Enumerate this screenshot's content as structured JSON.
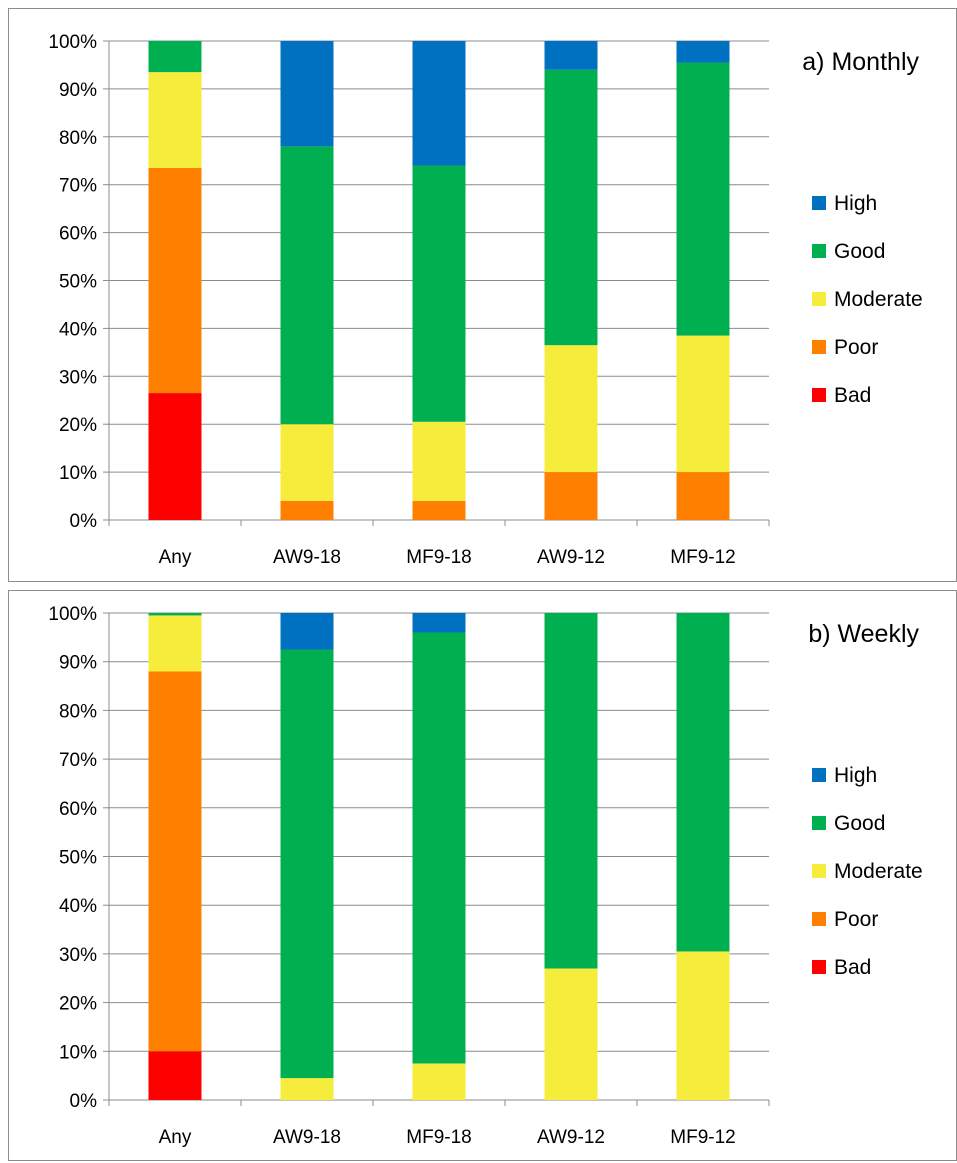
{
  "colors": {
    "High": "#0070c0",
    "Good": "#00b050",
    "Moderate": "#f5ec3c",
    "Poor": "#ff8000",
    "Bad": "#ff0000",
    "grid": "#8c8c8c"
  },
  "chart_data": [
    {
      "type": "bar",
      "stacked": true,
      "title": "a) Monthly",
      "categories": [
        "Any",
        "AW9-18",
        "MF9-18",
        "AW9-12",
        "MF9-12"
      ],
      "ylim": [
        0,
        100
      ],
      "yticks": [
        "0%",
        "10%",
        "20%",
        "30%",
        "40%",
        "50%",
        "60%",
        "70%",
        "80%",
        "90%",
        "100%"
      ],
      "grid": true,
      "legend_position": "right",
      "series": [
        {
          "name": "Bad",
          "values": [
            26.5,
            0,
            0,
            0,
            0
          ]
        },
        {
          "name": "Poor",
          "values": [
            47,
            4,
            4,
            10,
            10
          ]
        },
        {
          "name": "Moderate",
          "values": [
            20,
            16,
            16.5,
            26.5,
            28.5
          ]
        },
        {
          "name": "Good",
          "values": [
            6.5,
            58,
            53.5,
            57.5,
            57
          ]
        },
        {
          "name": "High",
          "values": [
            0,
            22,
            26,
            6,
            4.5
          ]
        }
      ]
    },
    {
      "type": "bar",
      "stacked": true,
      "title": "b) Weekly",
      "categories": [
        "Any",
        "AW9-18",
        "MF9-18",
        "AW9-12",
        "MF9-12"
      ],
      "ylim": [
        0,
        100
      ],
      "yticks": [
        "0%",
        "10%",
        "20%",
        "30%",
        "40%",
        "50%",
        "60%",
        "70%",
        "80%",
        "90%",
        "100%"
      ],
      "grid": true,
      "legend_position": "right",
      "series": [
        {
          "name": "Bad",
          "values": [
            10,
            0,
            0,
            0,
            0
          ]
        },
        {
          "name": "Poor",
          "values": [
            78,
            0,
            0,
            0,
            0
          ]
        },
        {
          "name": "Moderate",
          "values": [
            11.5,
            4.5,
            7.5,
            27,
            30.5
          ]
        },
        {
          "name": "Good",
          "values": [
            0.5,
            88,
            88.5,
            73,
            69.5
          ]
        },
        {
          "name": "High",
          "values": [
            0,
            7.5,
            4,
            0,
            0
          ]
        }
      ]
    }
  ]
}
